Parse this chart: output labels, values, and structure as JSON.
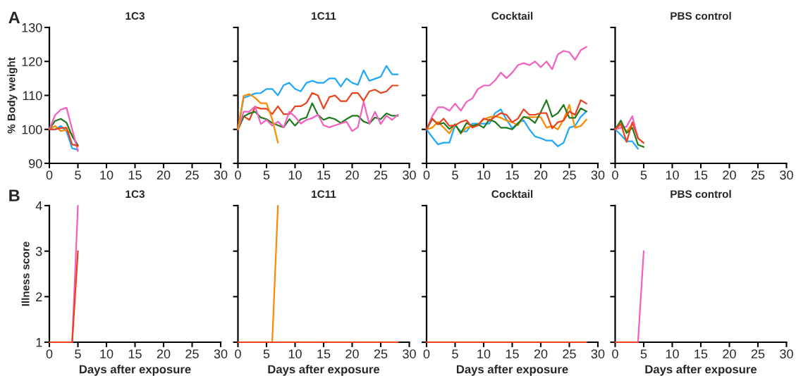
{
  "chart_data": [
    {
      "type": "line",
      "title": "1C3",
      "ylabel": "% Body weight",
      "annotations": [
        "A"
      ],
      "xlim": [
        0,
        30
      ],
      "xticks": [
        0,
        5,
        10,
        15,
        20,
        25,
        30
      ],
      "ylim": [
        90,
        130
      ],
      "yticks": [
        90,
        100,
        110,
        120,
        130
      ],
      "series": [
        {
          "color": "#1ea7fd",
          "x": [
            0,
            1,
            2,
            3,
            4,
            5
          ],
          "values": [
            100,
            100,
            101,
            99.5,
            94.4,
            94
          ]
        },
        {
          "color": "#fb8c00",
          "x": [
            0,
            1,
            2,
            3,
            4,
            5
          ],
          "values": [
            100,
            101,
            99.5,
            99.8,
            98.5,
            95
          ]
        },
        {
          "color": "#1e7b1e",
          "x": [
            0,
            1,
            2,
            3,
            4,
            5
          ],
          "values": [
            100,
            102.5,
            103.1,
            102,
            98,
            95.3
          ]
        },
        {
          "color": "#f55fc0",
          "x": [
            0,
            1,
            2,
            3,
            4,
            5
          ],
          "values": [
            100,
            104.2,
            105.8,
            106.4,
            100,
            93.6
          ]
        },
        {
          "color": "#e8431c",
          "x": [
            0,
            1,
            2,
            3,
            4,
            5
          ],
          "values": [
            100,
            100,
            100.4,
            100.5,
            95.5,
            95.2
          ]
        }
      ]
    },
    {
      "type": "line",
      "title": "1C11",
      "tick_labels": "x",
      "xlim": [
        0,
        30
      ],
      "xticks": [
        0,
        5,
        10,
        15,
        20,
        25,
        30
      ],
      "ylim": [
        90,
        130
      ],
      "yticks": [
        90,
        100,
        110,
        120,
        130
      ],
      "series": [
        {
          "color": "#1ea7fd",
          "x": [
            0,
            1,
            2,
            3,
            4,
            5,
            6,
            7,
            8,
            9,
            10,
            11,
            12,
            13,
            14,
            15,
            16,
            17,
            18,
            19,
            20,
            21,
            22,
            23,
            24,
            25,
            26,
            27,
            28
          ],
          "values": [
            100,
            109.3,
            109.9,
            110.6,
            110.7,
            111.9,
            111.9,
            110,
            113,
            113.7,
            111.9,
            111.2,
            113.7,
            114.3,
            113.7,
            113.7,
            115,
            115,
            112.6,
            115,
            113.7,
            113.1,
            117.4,
            114.3,
            114.9,
            115.5,
            118.7,
            116.2,
            116.2
          ]
        },
        {
          "color": "#e8431c",
          "x": [
            0,
            1,
            2,
            3,
            4,
            5,
            6,
            7,
            8,
            9,
            10,
            11,
            12,
            13,
            14,
            15,
            16,
            17,
            18,
            19,
            20,
            21,
            22,
            23,
            24,
            25,
            26,
            27,
            28
          ],
          "values": [
            100,
            103.8,
            102.8,
            106.6,
            106.1,
            106.1,
            104.5,
            106.8,
            104.5,
            104.5,
            106.8,
            106.8,
            107.8,
            110.7,
            110,
            106.1,
            109.5,
            110,
            108.3,
            108.3,
            110.7,
            110.7,
            108.4,
            111.2,
            111.7,
            110.7,
            111.2,
            112.9,
            112.9
          ]
        },
        {
          "color": "#1e7b1e",
          "x": [
            0,
            1,
            2,
            3,
            4,
            5,
            6,
            7,
            8,
            9,
            10,
            11,
            12,
            13,
            14,
            15,
            16,
            17,
            18,
            19,
            20,
            21,
            22,
            23,
            24,
            25,
            26,
            27,
            28
          ],
          "values": [
            100,
            103.8,
            104.7,
            105.2,
            103.5,
            103,
            101.9,
            101.2,
            100.6,
            103,
            101.1,
            103,
            103.5,
            107.7,
            104.3,
            102.8,
            103.5,
            103,
            101.9,
            103,
            104,
            104,
            102.3,
            101.7,
            103.5,
            103,
            104.7,
            104,
            104
          ]
        },
        {
          "color": "#f55fc0",
          "x": [
            0,
            1,
            2,
            3,
            4,
            5,
            6,
            7,
            8,
            9,
            10,
            11,
            12,
            13,
            14,
            15,
            16,
            17,
            18,
            19,
            20,
            21,
            22,
            23,
            24,
            25,
            26,
            27,
            28
          ],
          "values": [
            100,
            105.2,
            105.2,
            106.8,
            101.6,
            102.8,
            101.1,
            102.3,
            100.6,
            105.2,
            103.7,
            101.7,
            102.8,
            103.3,
            104.3,
            101.2,
            100.6,
            101.2,
            101.7,
            102.3,
            99.5,
            100.6,
            108.1,
            101.7,
            105.2,
            101.6,
            104,
            102.8,
            104.3
          ]
        },
        {
          "color": "#fb8c00",
          "x": [
            0,
            1,
            2,
            3,
            4,
            5,
            6,
            7
          ],
          "values": [
            100,
            109.9,
            110.4,
            109.3,
            107.7,
            107.7,
            103,
            96.1
          ]
        }
      ]
    },
    {
      "type": "line",
      "title": "Cocktail",
      "tick_labels": "x",
      "xlim": [
        0,
        30
      ],
      "xticks": [
        0,
        5,
        10,
        15,
        20,
        25,
        30
      ],
      "ylim": [
        90,
        130
      ],
      "yticks": [
        90,
        100,
        110,
        120,
        130
      ],
      "series": [
        {
          "color": "#f55fc0",
          "x": [
            0,
            1,
            2,
            3,
            4,
            5,
            6,
            7,
            8,
            9,
            10,
            11,
            12,
            13,
            14,
            15,
            16,
            17,
            18,
            19,
            20,
            21,
            22,
            23,
            24,
            25,
            26,
            27,
            28
          ],
          "values": [
            100,
            103.9,
            106.5,
            106.5,
            105.5,
            107.6,
            105.5,
            108.1,
            109.1,
            111.9,
            112.9,
            112.9,
            114.4,
            116.7,
            115.1,
            116.7,
            118.9,
            119.5,
            118.9,
            120,
            118.3,
            120,
            117.7,
            122.1,
            123.1,
            122.7,
            120.5,
            123.3,
            124.3
          ]
        },
        {
          "color": "#1ea7fd",
          "x": [
            0,
            1,
            2,
            3,
            4,
            5,
            6,
            7,
            8,
            9,
            10,
            11,
            12,
            13,
            14,
            15,
            16,
            17,
            18,
            19,
            20,
            21,
            22,
            23,
            24,
            25,
            26,
            27,
            28
          ],
          "values": [
            100,
            97.7,
            95.6,
            96.1,
            96.1,
            101.2,
            99.4,
            99.4,
            101.7,
            101.7,
            101.7,
            101.7,
            104.8,
            105.9,
            102.9,
            100.3,
            101.9,
            102.7,
            100,
            97.9,
            97.4,
            96.7,
            96.7,
            95,
            96.1,
            100.5,
            101,
            103.7,
            105.3
          ]
        },
        {
          "color": "#fb8c00",
          "x": [
            0,
            1,
            2,
            3,
            4,
            5,
            6,
            7,
            8,
            9,
            10,
            11,
            12,
            13,
            14,
            15,
            16,
            17,
            18,
            19,
            20,
            21,
            22,
            23,
            24,
            25,
            26,
            27,
            28
          ],
          "values": [
            100,
            100.5,
            102.2,
            100.5,
            98.8,
            101.5,
            98.8,
            100.5,
            101,
            101.5,
            102.9,
            103.6,
            103.9,
            103.4,
            102.6,
            102.1,
            101.2,
            103.6,
            103.6,
            103.6,
            103.6,
            100.5,
            101,
            100,
            102.9,
            107.2,
            100.5,
            101,
            102.9
          ]
        },
        {
          "color": "#1e7b1e",
          "x": [
            0,
            1,
            2,
            3,
            4,
            5,
            6,
            7,
            8,
            9,
            10,
            11,
            12,
            13,
            14,
            15,
            16,
            17,
            18,
            19,
            20,
            21,
            22,
            23,
            24,
            25,
            26,
            27,
            28
          ],
          "values": [
            100,
            103,
            101.5,
            101.9,
            100.1,
            101.5,
            98.9,
            101.9,
            101,
            101.5,
            100.5,
            102.9,
            102.2,
            100.5,
            100.5,
            100,
            101.7,
            103.7,
            103.2,
            101.9,
            105.1,
            108.6,
            103.7,
            104.8,
            107.2,
            103.4,
            103.4,
            106.2,
            105.3
          ]
        },
        {
          "color": "#e8431c",
          "x": [
            0,
            1,
            2,
            3,
            4,
            5,
            6,
            7,
            8,
            9,
            10,
            11,
            12,
            13,
            14,
            15,
            16,
            17,
            18,
            19,
            20,
            21,
            22,
            23,
            24,
            25,
            26,
            27,
            28
          ],
          "values": [
            100,
            103.2,
            101.5,
            103.2,
            101,
            101.2,
            102.2,
            102.7,
            100.5,
            101.2,
            103.2,
            102.6,
            103.7,
            104.8,
            104.3,
            102.1,
            103.2,
            105.9,
            104.3,
            104.3,
            104.8,
            104.8,
            100.3,
            102.1,
            102.6,
            105.3,
            104.3,
            108.6,
            107.6
          ]
        }
      ]
    },
    {
      "type": "line",
      "title": "PBS control",
      "tick_labels": "x",
      "xlim": [
        0,
        30
      ],
      "xticks": [
        0,
        5,
        10,
        15,
        20,
        25,
        30
      ],
      "ylim": [
        90,
        130
      ],
      "yticks": [
        90,
        100,
        110,
        120,
        130
      ],
      "series": [
        {
          "color": "#1ea7fd",
          "x": [
            0,
            1,
            2,
            3,
            4
          ],
          "values": [
            100,
            98.4,
            96.5,
            96.5,
            94.3
          ]
        },
        {
          "color": "#fb8c00",
          "x": [
            0,
            1,
            2,
            3
          ],
          "values": [
            100,
            101.5,
            99.4,
            101.5
          ]
        },
        {
          "color": "#f55fc0",
          "x": [
            0,
            1,
            2,
            3,
            4
          ],
          "values": [
            100,
            100.5,
            100.8,
            103.9,
            97.4
          ]
        },
        {
          "color": "#1e7b1e",
          "x": [
            0,
            1,
            2,
            3,
            4,
            5
          ],
          "values": [
            100,
            102.6,
            98.9,
            100.5,
            95.5,
            94.8
          ]
        },
        {
          "color": "#e8431c",
          "x": [
            0,
            1,
            2,
            3,
            4,
            5
          ],
          "values": [
            100,
            101.7,
            96.3,
            102.1,
            97.4,
            96
          ]
        }
      ]
    },
    {
      "type": "line",
      "title": "1C3",
      "ylabel": "Illness score",
      "xlabel": "Days after exposure",
      "annotations": [
        "B"
      ],
      "xlim": [
        0,
        30
      ],
      "xticks": [
        0,
        5,
        10,
        15,
        20,
        25,
        30
      ],
      "ylim": [
        1,
        4
      ],
      "yticks": [
        1,
        2,
        3,
        4
      ],
      "series": [
        {
          "color": "#f55fc0",
          "x": [
            4,
            5
          ],
          "values": [
            1,
            4
          ]
        },
        {
          "color": "#e8431c",
          "x": [
            0,
            1,
            2,
            3,
            4,
            5
          ],
          "values": [
            1,
            1,
            1,
            1,
            1,
            3
          ]
        }
      ]
    },
    {
      "type": "line",
      "title": "1C11",
      "xlabel": "Days after exposure",
      "tick_labels": "x",
      "xlim": [
        0,
        30
      ],
      "xticks": [
        0,
        5,
        10,
        15,
        20,
        25,
        30
      ],
      "ylim": [
        1,
        4
      ],
      "yticks": [
        1,
        2,
        3,
        4
      ],
      "series": [
        {
          "color": "#fb8c00",
          "x": [
            6,
            7
          ],
          "values": [
            1,
            4
          ]
        },
        {
          "color": "#e8431c",
          "x": [
            0,
            1,
            2,
            3,
            4,
            5,
            6,
            7,
            8,
            9,
            10,
            11,
            12,
            13,
            14,
            15,
            16,
            17,
            18,
            19,
            20,
            21,
            22,
            23,
            24,
            25,
            26,
            27,
            28
          ],
          "values": [
            1,
            1,
            1,
            1,
            1,
            1,
            1,
            1,
            1,
            1,
            1,
            1,
            1,
            1,
            1,
            1,
            1,
            1,
            1,
            1,
            1,
            1,
            1,
            1,
            1,
            1,
            1,
            1,
            1
          ]
        }
      ]
    },
    {
      "type": "line",
      "title": "Cocktail",
      "xlabel": "Days after exposure",
      "tick_labels": "x",
      "xlim": [
        0,
        30
      ],
      "xticks": [
        0,
        5,
        10,
        15,
        20,
        25,
        30
      ],
      "ylim": [
        1,
        4
      ],
      "yticks": [
        1,
        2,
        3,
        4
      ],
      "series": [
        {
          "color": "#e8431c",
          "x": [
            0,
            1,
            2,
            3,
            4,
            5,
            6,
            7,
            8,
            9,
            10,
            11,
            12,
            13,
            14,
            15,
            16,
            17,
            18,
            19,
            20,
            21,
            22,
            23,
            24,
            25,
            26,
            27,
            28
          ],
          "values": [
            1,
            1,
            1,
            1,
            1,
            1,
            1,
            1,
            1,
            1,
            1,
            1,
            1,
            1,
            1,
            1,
            1,
            1,
            1,
            1,
            1,
            1,
            1,
            1,
            1,
            1,
            1,
            1,
            1
          ]
        }
      ]
    },
    {
      "type": "line",
      "title": "PBS control",
      "xlabel": "Days after exposure",
      "tick_labels": "x",
      "xlim": [
        0,
        30
      ],
      "xticks": [
        0,
        5,
        10,
        15,
        20,
        25,
        30
      ],
      "ylim": [
        1,
        4
      ],
      "yticks": [
        1,
        2,
        3,
        4
      ],
      "series": [
        {
          "color": "#f55fc0",
          "x": [
            4,
            5
          ],
          "values": [
            1,
            3
          ]
        },
        {
          "color": "#e8431c",
          "x": [
            0,
            1,
            2,
            3,
            4
          ],
          "values": [
            1,
            1,
            1,
            1,
            1
          ]
        }
      ]
    }
  ]
}
